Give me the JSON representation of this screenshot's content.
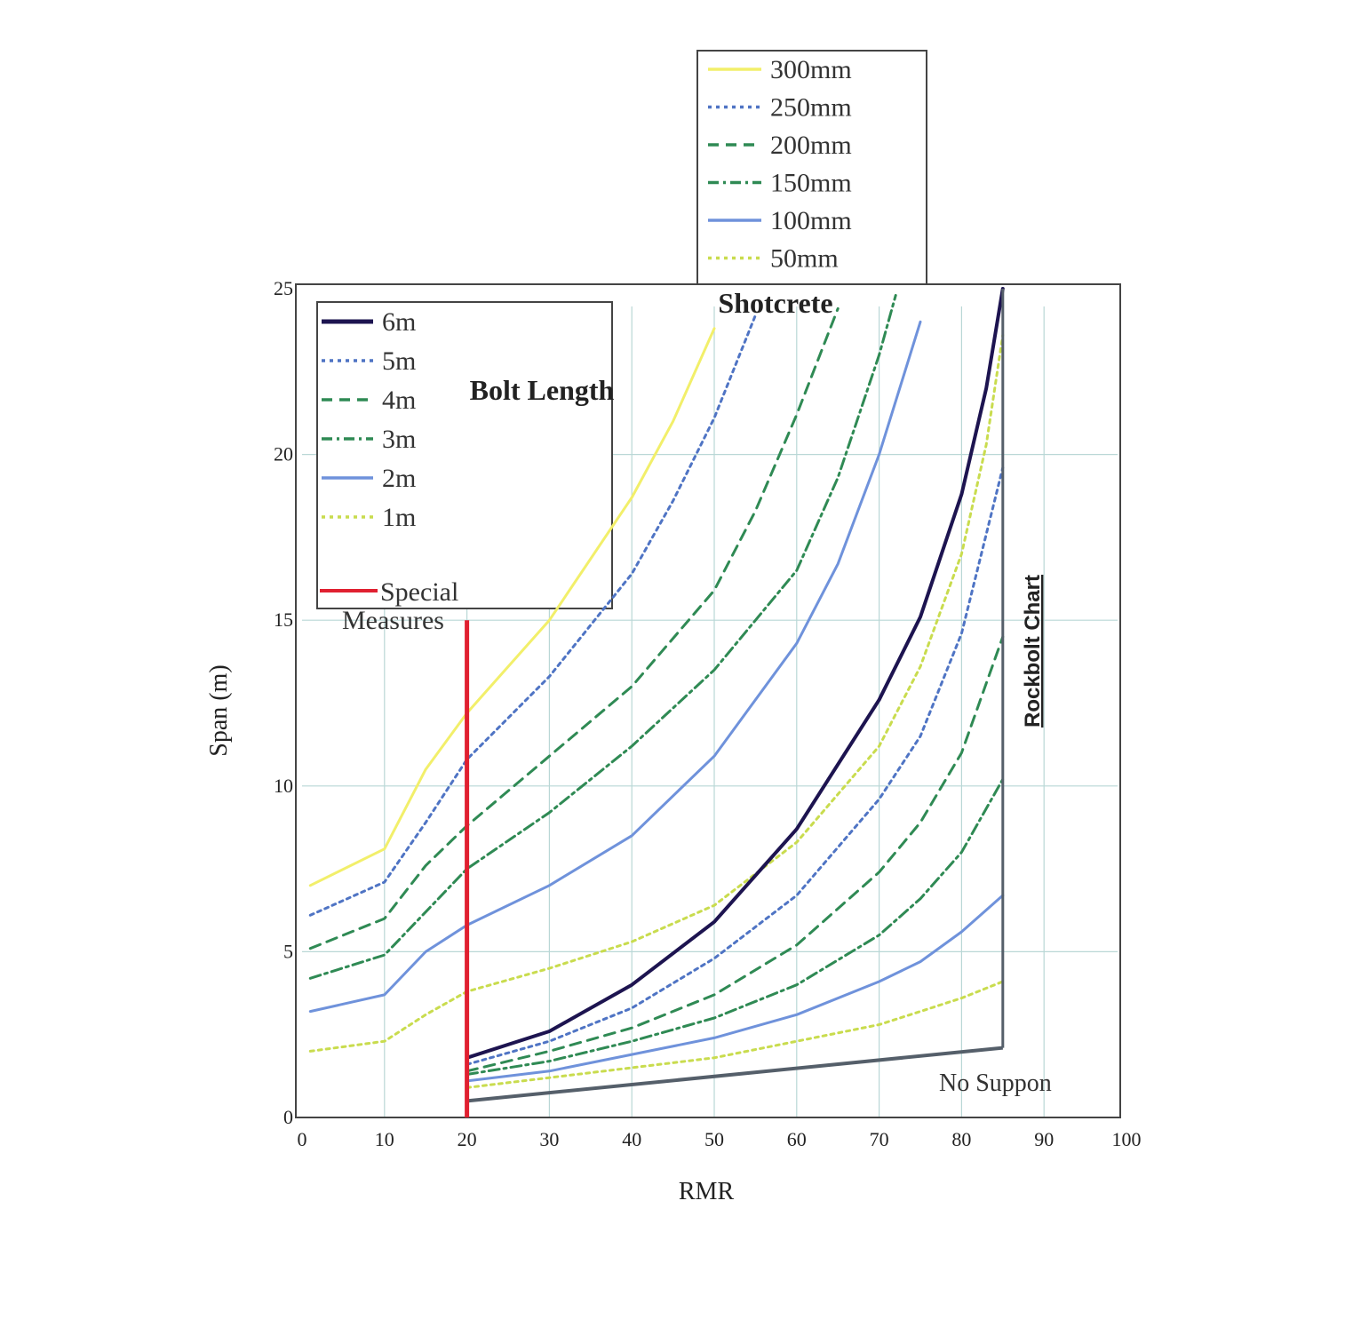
{
  "chart_data": {
    "type": "line",
    "title": "Rockbolt Chart",
    "xlabel": "RMR",
    "ylabel": "Span (m)",
    "xlim": [
      0,
      100
    ],
    "ylim": [
      0,
      25
    ],
    "x_ticks": [
      "0",
      "10",
      "20",
      "30",
      "40",
      "50",
      "60",
      "70",
      "80",
      "90",
      "100"
    ],
    "y_ticks": [
      "0",
      "5",
      "10",
      "15",
      "20",
      "25"
    ],
    "grid": true,
    "annotations": {
      "shotcrete": "Shotcrete",
      "bolt_length": "Bolt Length",
      "no_support": "No Suppon",
      "special_measures_line1": "Special",
      "special_measures_line2": "Measures"
    },
    "special_measures_rmr": 20,
    "special_measures_top": 15,
    "no_support_boundary": [
      [
        20,
        0.5
      ],
      [
        85,
        2.1
      ]
    ],
    "no_support_right_edge": [
      [
        85,
        2.1
      ],
      [
        85,
        25
      ]
    ],
    "shotcrete_series": [
      {
        "name": "300mm",
        "color": "#f2ef6a",
        "style": "solid",
        "points": [
          [
            1,
            7.0
          ],
          [
            10,
            8.1
          ],
          [
            15,
            10.5
          ],
          [
            20,
            12.2
          ],
          [
            30,
            15.0
          ],
          [
            40,
            18.7
          ],
          [
            45,
            21.0
          ],
          [
            50,
            23.8
          ]
        ]
      },
      {
        "name": "250mm",
        "color": "#4f74c4",
        "style": "dotted",
        "points": [
          [
            1,
            6.1
          ],
          [
            10,
            7.1
          ],
          [
            15,
            8.9
          ],
          [
            20,
            10.8
          ],
          [
            30,
            13.3
          ],
          [
            40,
            16.4
          ],
          [
            45,
            18.6
          ],
          [
            50,
            21.1
          ],
          [
            55,
            24.2
          ]
        ]
      },
      {
        "name": "200mm",
        "color": "#2f8a54",
        "style": "dashed",
        "points": [
          [
            1,
            5.1
          ],
          [
            10,
            6.0
          ],
          [
            15,
            7.6
          ],
          [
            20,
            8.8
          ],
          [
            30,
            10.9
          ],
          [
            40,
            13.0
          ],
          [
            50,
            15.9
          ],
          [
            55,
            18.3
          ],
          [
            60,
            21.2
          ],
          [
            65,
            24.4
          ]
        ]
      },
      {
        "name": "150mm",
        "color": "#2f8a54",
        "style": "dashdot",
        "points": [
          [
            1,
            4.2
          ],
          [
            10,
            4.9
          ],
          [
            20,
            7.5
          ],
          [
            30,
            9.2
          ],
          [
            40,
            11.2
          ],
          [
            50,
            13.5
          ],
          [
            60,
            16.5
          ],
          [
            65,
            19.3
          ],
          [
            70,
            23.0
          ],
          [
            72,
            24.8
          ]
        ]
      },
      {
        "name": "100mm",
        "color": "#6f92db",
        "style": "solid",
        "points": [
          [
            1,
            3.2
          ],
          [
            10,
            3.7
          ],
          [
            15,
            5.0
          ],
          [
            20,
            5.8
          ],
          [
            30,
            7.0
          ],
          [
            40,
            8.5
          ],
          [
            50,
            10.9
          ],
          [
            60,
            14.3
          ],
          [
            65,
            16.7
          ],
          [
            70,
            20.0
          ],
          [
            75,
            24.0
          ]
        ]
      },
      {
        "name": "50mm",
        "color": "#c9dc4e",
        "style": "dotted",
        "points": [
          [
            1,
            2.0
          ],
          [
            10,
            2.3
          ],
          [
            15,
            3.1
          ],
          [
            20,
            3.8
          ],
          [
            30,
            4.5
          ],
          [
            40,
            5.3
          ],
          [
            50,
            6.4
          ],
          [
            60,
            8.3
          ],
          [
            70,
            11.2
          ],
          [
            75,
            13.6
          ],
          [
            80,
            17.0
          ],
          [
            83,
            20.3
          ],
          [
            85,
            23.6
          ]
        ]
      }
    ],
    "bolt_series": [
      {
        "name": "6m",
        "color": "#1d1450",
        "style": "solid",
        "points": [
          [
            20,
            1.8
          ],
          [
            30,
            2.6
          ],
          [
            40,
            4.0
          ],
          [
            50,
            5.9
          ],
          [
            60,
            8.7
          ],
          [
            70,
            12.6
          ],
          [
            75,
            15.1
          ],
          [
            80,
            18.8
          ],
          [
            83,
            22.0
          ],
          [
            85,
            25.0
          ]
        ]
      },
      {
        "name": "5m",
        "color": "#4f74c4",
        "style": "dotted",
        "points": [
          [
            20,
            1.6
          ],
          [
            30,
            2.3
          ],
          [
            40,
            3.3
          ],
          [
            50,
            4.8
          ],
          [
            60,
            6.7
          ],
          [
            70,
            9.6
          ],
          [
            75,
            11.5
          ],
          [
            80,
            14.6
          ],
          [
            85,
            19.6
          ]
        ]
      },
      {
        "name": "4m",
        "color": "#2f8a54",
        "style": "dashed",
        "points": [
          [
            20,
            1.4
          ],
          [
            30,
            2.0
          ],
          [
            40,
            2.7
          ],
          [
            50,
            3.7
          ],
          [
            60,
            5.2
          ],
          [
            70,
            7.4
          ],
          [
            75,
            8.9
          ],
          [
            80,
            11.0
          ],
          [
            85,
            14.5
          ]
        ]
      },
      {
        "name": "3m",
        "color": "#2f8a54",
        "style": "dashdot",
        "points": [
          [
            20,
            1.3
          ],
          [
            30,
            1.7
          ],
          [
            40,
            2.3
          ],
          [
            50,
            3.0
          ],
          [
            60,
            4.0
          ],
          [
            70,
            5.5
          ],
          [
            75,
            6.6
          ],
          [
            80,
            8.0
          ],
          [
            85,
            10.2
          ]
        ]
      },
      {
        "name": "2m",
        "color": "#6f92db",
        "style": "solid",
        "points": [
          [
            20,
            1.1
          ],
          [
            30,
            1.4
          ],
          [
            40,
            1.9
          ],
          [
            50,
            2.4
          ],
          [
            60,
            3.1
          ],
          [
            70,
            4.1
          ],
          [
            75,
            4.7
          ],
          [
            80,
            5.6
          ],
          [
            85,
            6.7
          ]
        ]
      },
      {
        "name": "1m",
        "color": "#c9dc4e",
        "style": "dotted",
        "points": [
          [
            20,
            0.9
          ],
          [
            30,
            1.2
          ],
          [
            40,
            1.5
          ],
          [
            50,
            1.8
          ],
          [
            60,
            2.3
          ],
          [
            70,
            2.8
          ],
          [
            75,
            3.2
          ],
          [
            80,
            3.6
          ],
          [
            85,
            4.1
          ]
        ]
      }
    ],
    "special_measures": {
      "name": "Special Measures",
      "color": "#e02030"
    },
    "no_support_color": "#555f6a"
  }
}
